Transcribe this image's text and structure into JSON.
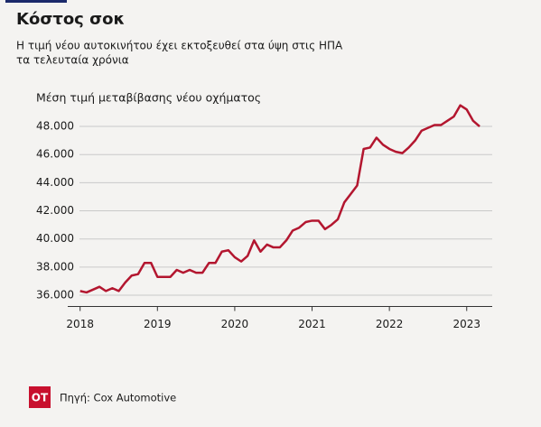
{
  "chart_data": {
    "type": "line",
    "title": "Κόστος σοκ",
    "subtitle": [
      "Η τιμή νέου αυτοκινήτου έχει εκτοξευθεί στα ύψη στις ΗΠΑ",
      "τα τελευταία χρόνια"
    ],
    "y_label": "Μέση τιμή μεταβίβασης νέου οχήματος",
    "source": "Πηγή: Cox Automotive",
    "logo": "OT",
    "x": [
      2018,
      2018.083,
      2018.167,
      2018.25,
      2018.333,
      2018.417,
      2018.5,
      2018.583,
      2018.667,
      2018.75,
      2018.833,
      2018.917,
      2019,
      2019.083,
      2019.167,
      2019.25,
      2019.333,
      2019.417,
      2019.5,
      2019.583,
      2019.667,
      2019.75,
      2019.833,
      2019.917,
      2020,
      2020.083,
      2020.167,
      2020.25,
      2020.333,
      2020.417,
      2020.5,
      2020.583,
      2020.667,
      2020.75,
      2020.833,
      2020.917,
      2021,
      2021.083,
      2021.167,
      2021.25,
      2021.333,
      2021.417,
      2021.5,
      2021.583,
      2021.667,
      2021.75,
      2021.833,
      2021.917,
      2022,
      2022.083,
      2022.167,
      2022.25,
      2022.333,
      2022.417,
      2022.5,
      2022.583,
      2022.667,
      2022.75,
      2022.833,
      2022.917,
      2023,
      2023.083,
      2023.167
    ],
    "series": [
      {
        "name": "Μέση τιμή",
        "color": "#b3162f",
        "values": [
          36300,
          36200,
          36400,
          36600,
          36300,
          36500,
          36300,
          36900,
          37400,
          37500,
          38300,
          38300,
          37300,
          37300,
          37300,
          37800,
          37600,
          37800,
          37600,
          37600,
          38300,
          38300,
          39100,
          39200,
          38700,
          38400,
          38800,
          39900,
          39100,
          39600,
          39400,
          39400,
          39900,
          40600,
          40800,
          41200,
          41300,
          41300,
          40700,
          41000,
          41400,
          42600,
          43200,
          43800,
          46400,
          46500,
          47200,
          46700,
          46400,
          46200,
          46100,
          46500,
          47000,
          47700,
          47900,
          48100,
          48100,
          48400,
          48700,
          49500,
          49200,
          48400,
          48000
        ]
      }
    ],
    "xlim": [
      2017.84,
      2023.33
    ],
    "xticks": [
      2018,
      2019,
      2020,
      2021,
      2022,
      2023
    ],
    "ylim": [
      35200,
      49800
    ],
    "yticks": [
      {
        "value": 36000,
        "label": "36.000"
      },
      {
        "value": 38000,
        "label": "38.000"
      },
      {
        "value": 40000,
        "label": "40.000"
      },
      {
        "value": 42000,
        "label": "42.000"
      },
      {
        "value": 44000,
        "label": "44.000"
      },
      {
        "value": 46000,
        "label": "46.000"
      },
      {
        "value": 48000,
        "label": "48.000"
      }
    ],
    "grid": true
  }
}
